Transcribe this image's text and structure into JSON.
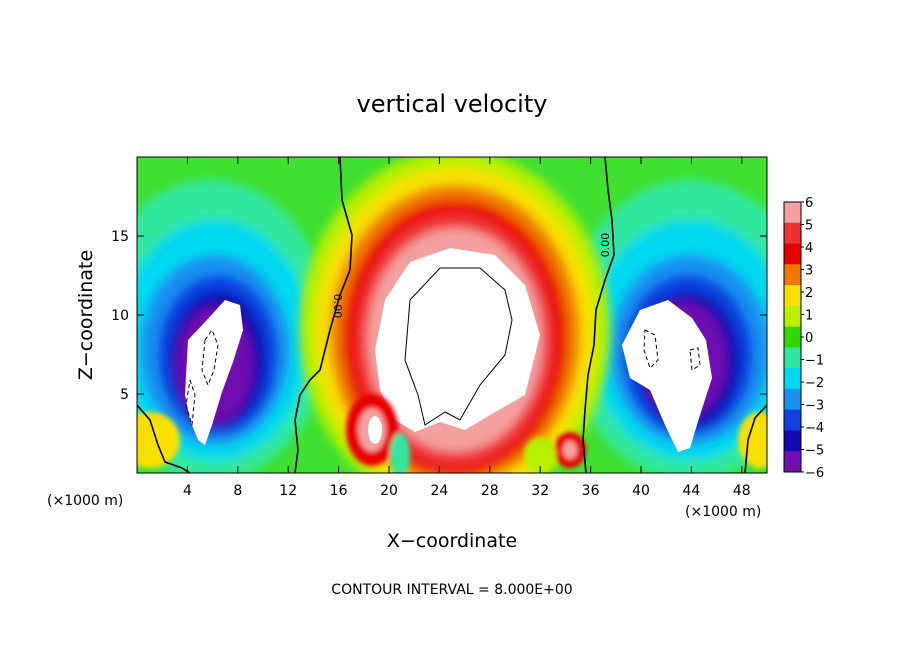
{
  "chart_data": {
    "type": "heatmap",
    "title": "vertical velocity",
    "xlabel": "X−coordinate",
    "ylabel": "Z−coordinate",
    "x_unit_left": "(×1000 m)",
    "x_unit_right": "(×1000 m)",
    "xlim": [
      0,
      50
    ],
    "ylim": [
      0,
      20
    ],
    "x_ticks": [
      4,
      8,
      12,
      16,
      20,
      24,
      28,
      32,
      36,
      40,
      44,
      48
    ],
    "y_ticks": [
      5,
      10,
      15
    ],
    "colorbar": {
      "levels": [
        6,
        5,
        4,
        3,
        2,
        1,
        0,
        -1,
        -2,
        -3,
        -4,
        -5,
        -6
      ],
      "labels": [
        "6",
        "5",
        "4",
        "3",
        "2",
        "1",
        "0",
        "−1",
        "−2",
        "−3",
        "−4",
        "−5",
        "−6"
      ],
      "colors": [
        "#f4a0a0",
        "#f03030",
        "#e80000",
        "#f07800",
        "#f8e000",
        "#b8f000",
        "#30d800",
        "#30e8a0",
        "#00d8f0",
        "#1890f0",
        "#1040e0",
        "#1008b0",
        "#7010b0"
      ]
    },
    "contour_label": "0.00",
    "contour_interval_text": "CONTOUR INTERVAL = 8.000E+00",
    "features": [
      {
        "kind": "updraft-core",
        "x": 25.5,
        "z": 9.0,
        "w": 10
      },
      {
        "kind": "downdraft-core",
        "x": 5.5,
        "z": 6.5,
        "w": -10
      },
      {
        "kind": "downdraft-core",
        "x": 43.5,
        "z": 7.0,
        "w": -10
      }
    ]
  }
}
